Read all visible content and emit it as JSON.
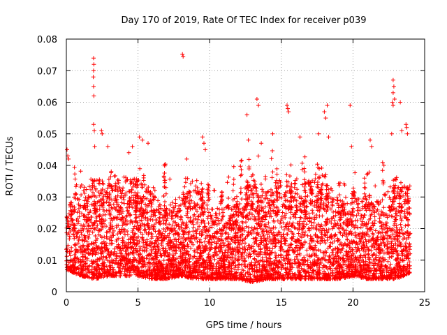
{
  "chart_data": {
    "type": "scatter",
    "title": "Day 170 of 2019, Rate Of TEC Index for receiver p039",
    "xlabel": "GPS time / hours",
    "ylabel": "ROTI / TECUs",
    "xlim": [
      0,
      25
    ],
    "ylim": [
      0,
      0.08
    ],
    "xticks": [
      0,
      5,
      10,
      15,
      20,
      25
    ],
    "xtick_labels": [
      "0",
      "5",
      "10",
      "15",
      "20",
      "25"
    ],
    "yticks": [
      0,
      0.01,
      0.02,
      0.03,
      0.04,
      0.05,
      0.06,
      0.07,
      0.08
    ],
    "ytick_labels": [
      "0",
      "0.01",
      "0.02",
      "0.03",
      "0.04",
      "0.05",
      "0.06",
      "0.07",
      "0.08"
    ],
    "grid": true,
    "marker": "+",
    "color": "#ff0000",
    "series": [
      {
        "name": "ROTI",
        "density_envelope": {
          "x": [
            0,
            1,
            2,
            3,
            4,
            5,
            6,
            7,
            8,
            9,
            10,
            11,
            12,
            13,
            14,
            15,
            16,
            17,
            18,
            19,
            20,
            21,
            22,
            23,
            24
          ],
          "base_min": [
            0.007,
            0.005,
            0.004,
            0.005,
            0.005,
            0.005,
            0.004,
            0.004,
            0.005,
            0.004,
            0.004,
            0.004,
            0.004,
            0.003,
            0.004,
            0.004,
            0.004,
            0.004,
            0.004,
            0.004,
            0.005,
            0.004,
            0.004,
            0.004,
            0.006
          ],
          "typical_max": [
            0.022,
            0.028,
            0.03,
            0.028,
            0.03,
            0.03,
            0.026,
            0.022,
            0.026,
            0.028,
            0.022,
            0.022,
            0.024,
            0.03,
            0.026,
            0.03,
            0.028,
            0.03,
            0.032,
            0.024,
            0.024,
            0.026,
            0.024,
            0.03,
            0.028
          ]
        },
        "outliers": [
          {
            "x": 0.05,
            "y": 0.045
          },
          {
            "x": 0.1,
            "y": 0.043
          },
          {
            "x": 0.15,
            "y": 0.042
          },
          {
            "x": 1.9,
            "y": 0.074
          },
          {
            "x": 1.92,
            "y": 0.072
          },
          {
            "x": 1.9,
            "y": 0.07
          },
          {
            "x": 1.88,
            "y": 0.068
          },
          {
            "x": 1.9,
            "y": 0.065
          },
          {
            "x": 1.92,
            "y": 0.062
          },
          {
            "x": 1.9,
            "y": 0.053
          },
          {
            "x": 1.95,
            "y": 0.051
          },
          {
            "x": 1.98,
            "y": 0.046
          },
          {
            "x": 2.45,
            "y": 0.051
          },
          {
            "x": 2.5,
            "y": 0.05
          },
          {
            "x": 2.9,
            "y": 0.046
          },
          {
            "x": 5.1,
            "y": 0.049
          },
          {
            "x": 5.3,
            "y": 0.048
          },
          {
            "x": 5.7,
            "y": 0.047
          },
          {
            "x": 8.1,
            "y": 0.0752
          },
          {
            "x": 8.15,
            "y": 0.0745
          },
          {
            "x": 8.4,
            "y": 0.042
          },
          {
            "x": 9.5,
            "y": 0.049
          },
          {
            "x": 9.6,
            "y": 0.047
          },
          {
            "x": 9.7,
            "y": 0.045
          },
          {
            "x": 12.6,
            "y": 0.056
          },
          {
            "x": 12.7,
            "y": 0.048
          },
          {
            "x": 13.3,
            "y": 0.061
          },
          {
            "x": 13.4,
            "y": 0.059
          },
          {
            "x": 13.6,
            "y": 0.047
          },
          {
            "x": 14.4,
            "y": 0.05
          },
          {
            "x": 15.4,
            "y": 0.059
          },
          {
            "x": 15.45,
            "y": 0.058
          },
          {
            "x": 15.5,
            "y": 0.057
          },
          {
            "x": 16.3,
            "y": 0.049
          },
          {
            "x": 17.6,
            "y": 0.05
          },
          {
            "x": 18.0,
            "y": 0.057
          },
          {
            "x": 18.1,
            "y": 0.055
          },
          {
            "x": 18.2,
            "y": 0.059
          },
          {
            "x": 18.3,
            "y": 0.049
          },
          {
            "x": 19.8,
            "y": 0.059
          },
          {
            "x": 19.9,
            "y": 0.046
          },
          {
            "x": 21.2,
            "y": 0.048
          },
          {
            "x": 21.3,
            "y": 0.046
          },
          {
            "x": 22.8,
            "y": 0.067
          },
          {
            "x": 22.85,
            "y": 0.065
          },
          {
            "x": 22.8,
            "y": 0.063
          },
          {
            "x": 22.9,
            "y": 0.061
          },
          {
            "x": 22.75,
            "y": 0.06
          },
          {
            "x": 22.8,
            "y": 0.059
          },
          {
            "x": 22.7,
            "y": 0.05
          },
          {
            "x": 23.3,
            "y": 0.06
          },
          {
            "x": 23.4,
            "y": 0.051
          },
          {
            "x": 23.7,
            "y": 0.053
          },
          {
            "x": 23.75,
            "y": 0.052
          },
          {
            "x": 23.8,
            "y": 0.05
          }
        ]
      }
    ]
  }
}
